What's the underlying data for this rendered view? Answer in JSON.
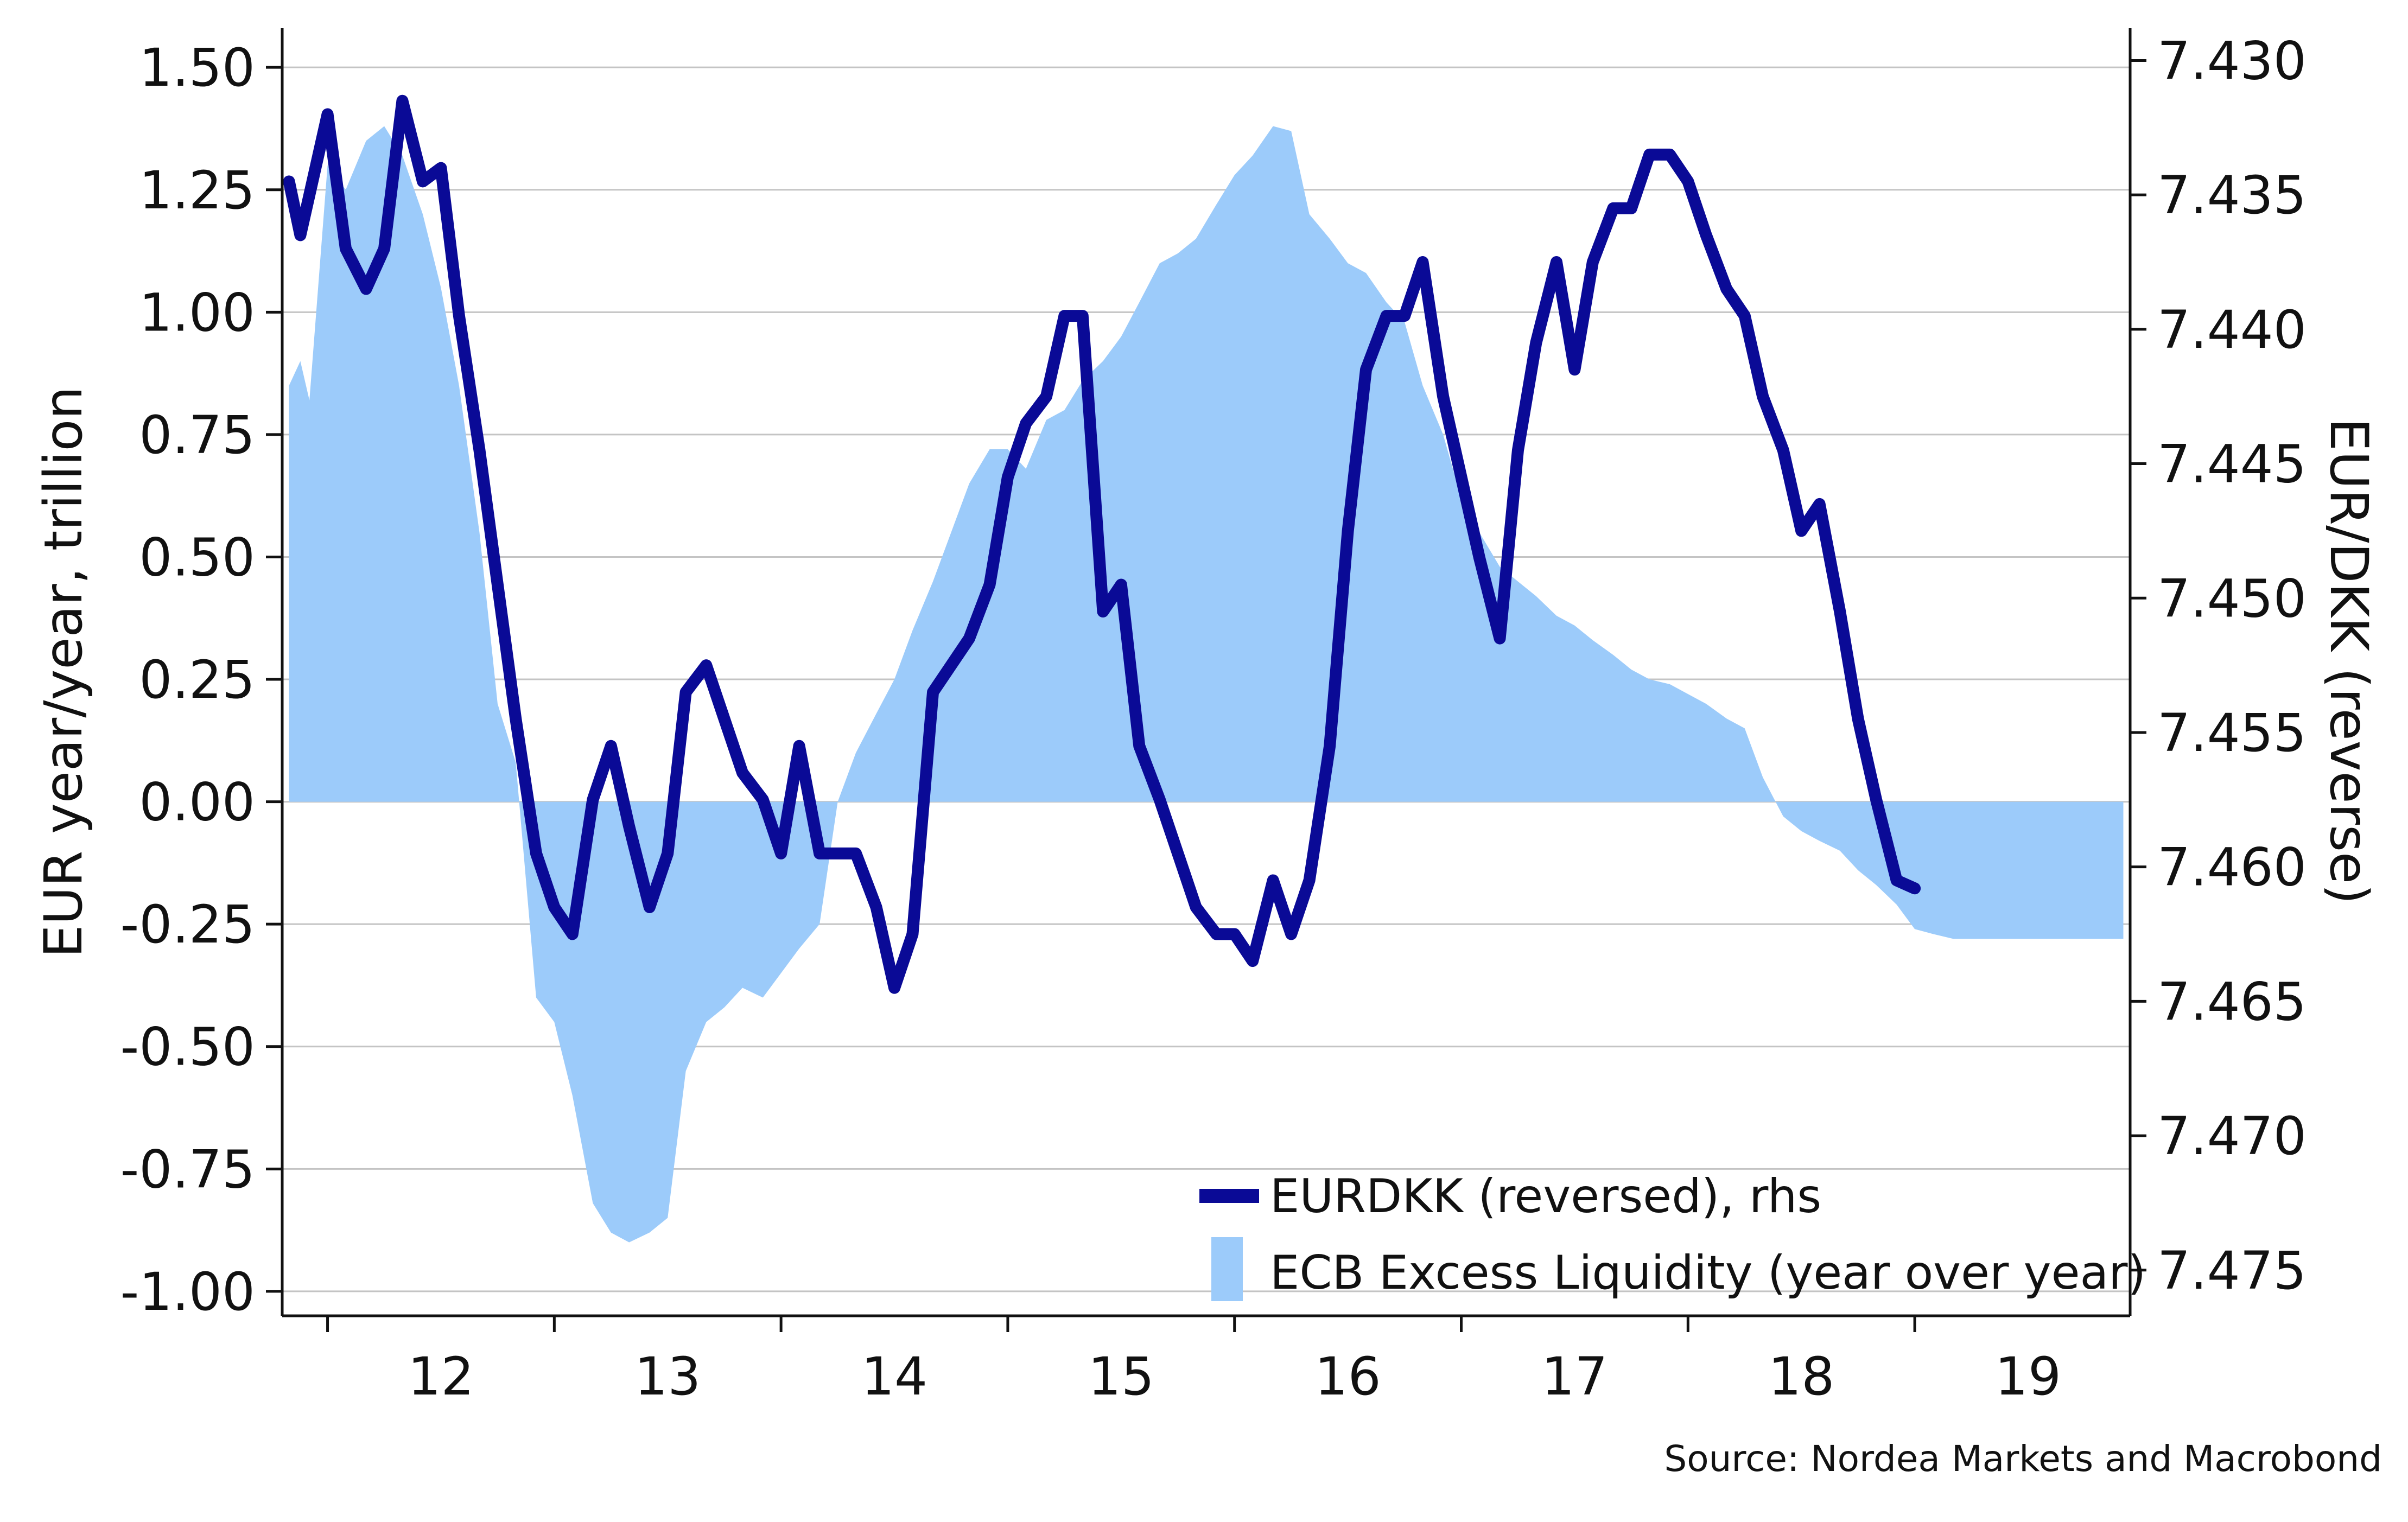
{
  "chart_data": {
    "type": "line",
    "title": "",
    "source": "Source: Nordea Markets and Macrobond",
    "ylabel_left": "EUR year/year, trillion",
    "ylabel_right": "EUR/DKK (reverse)",
    "xlim": [
      2011.3,
      2019.45
    ],
    "x_tick_values": [
      2011.5,
      2012.5,
      2013.5,
      2014.5,
      2015.5,
      2016.5,
      2017.5,
      2018.5,
      2019.5
    ],
    "x_tick_labels": [
      "12",
      "13",
      "14",
      "15",
      "16",
      "17",
      "18",
      "19"
    ],
    "x_tick_label_positions": [
      2012,
      2013,
      2014,
      2015,
      2016,
      2017,
      2018,
      2019
    ],
    "ylim_left": [
      -1.05,
      1.58
    ],
    "ylim_right": [
      7.4767,
      7.4288
    ],
    "right_axis_reversed": true,
    "left_tick_labels": [
      "1.50",
      "1.25",
      "1.00",
      "0.75",
      "0.50",
      "0.25",
      "0.00",
      "-0.25",
      "-0.50",
      "-0.75",
      "-1.00"
    ],
    "left_tick_values": [
      1.5,
      1.25,
      1.0,
      0.75,
      0.5,
      0.25,
      0.0,
      -0.25,
      -0.5,
      -0.75,
      -1.0
    ],
    "right_tick_labels": [
      "7.430",
      "7.435",
      "7.440",
      "7.445",
      "7.450",
      "7.455",
      "7.460",
      "7.465",
      "7.470",
      "7.475"
    ],
    "right_tick_values": [
      7.43,
      7.435,
      7.44,
      7.445,
      7.45,
      7.455,
      7.46,
      7.465,
      7.47,
      7.475
    ],
    "grid": true,
    "legend_position": "bottom-right",
    "colors": {
      "eurdkk": "#0a0a96",
      "excess_liquidity": "#9ccbfa",
      "grid": "#c4c4c4",
      "axis": "#111111"
    },
    "series": [
      {
        "name": "ECB Excess Liquidity (year over year)",
        "axis": "left",
        "kind": "area",
        "x": [
          2011.33,
          2011.38,
          2011.42,
          2011.5,
          2011.58,
          2011.67,
          2011.75,
          2011.83,
          2011.92,
          2012.0,
          2012.08,
          2012.17,
          2012.25,
          2012.33,
          2012.42,
          2012.5,
          2012.58,
          2012.67,
          2012.75,
          2012.83,
          2012.92,
          2013.0,
          2013.08,
          2013.17,
          2013.25,
          2013.33,
          2013.42,
          2013.5,
          2013.58,
          2013.67,
          2013.75,
          2013.83,
          2013.92,
          2014.0,
          2014.08,
          2014.17,
          2014.25,
          2014.33,
          2014.42,
          2014.5,
          2014.58,
          2014.67,
          2014.75,
          2014.83,
          2014.92,
          2015.0,
          2015.08,
          2015.17,
          2015.25,
          2015.33,
          2015.42,
          2015.5,
          2015.58,
          2015.67,
          2015.75,
          2015.83,
          2015.92,
          2016.0,
          2016.08,
          2016.17,
          2016.25,
          2016.33,
          2016.42,
          2016.5,
          2016.58,
          2016.67,
          2016.75,
          2016.83,
          2016.92,
          2017.0,
          2017.08,
          2017.17,
          2017.25,
          2017.33,
          2017.42,
          2017.5,
          2017.58,
          2017.67,
          2017.75,
          2017.83,
          2017.92,
          2018.0,
          2018.08,
          2018.17,
          2018.25,
          2018.33,
          2018.42,
          2018.5,
          2018.58,
          2018.67,
          2018.75,
          2018.83,
          2018.92,
          2019.0,
          2019.08,
          2019.17,
          2019.25,
          2019.33,
          2019.42
        ],
        "y": [
          0.85,
          0.9,
          0.82,
          1.3,
          1.25,
          1.35,
          1.38,
          1.32,
          1.2,
          1.05,
          0.85,
          0.55,
          0.2,
          0.08,
          -0.4,
          -0.45,
          -0.6,
          -0.82,
          -0.88,
          -0.9,
          -0.88,
          -0.85,
          -0.55,
          -0.45,
          -0.42,
          -0.38,
          -0.4,
          -0.35,
          -0.3,
          -0.25,
          0.0,
          0.1,
          0.18,
          0.25,
          0.35,
          0.45,
          0.55,
          0.65,
          0.72,
          0.72,
          0.68,
          0.78,
          0.8,
          0.86,
          0.9,
          0.95,
          1.02,
          1.1,
          1.12,
          1.15,
          1.22,
          1.28,
          1.32,
          1.38,
          1.37,
          1.2,
          1.15,
          1.1,
          1.08,
          1.02,
          0.98,
          0.85,
          0.75,
          0.62,
          0.55,
          0.48,
          0.45,
          0.42,
          0.38,
          0.36,
          0.33,
          0.3,
          0.27,
          0.25,
          0.24,
          0.22,
          0.2,
          0.17,
          0.15,
          0.05,
          -0.03,
          -0.06,
          -0.08,
          -0.1,
          -0.14,
          -0.17,
          -0.21,
          -0.26,
          -0.27,
          -0.28,
          -0.28,
          -0.28,
          -0.28,
          -0.28,
          -0.28,
          -0.28,
          -0.28,
          -0.28,
          -0.28
        ]
      },
      {
        "name": "EURDKK (reversed), rhs",
        "axis": "right",
        "kind": "line",
        "x": [
          2011.33,
          2011.38,
          2011.42,
          2011.5,
          2011.58,
          2011.67,
          2011.75,
          2011.83,
          2011.92,
          2012.0,
          2012.08,
          2012.17,
          2012.25,
          2012.33,
          2012.42,
          2012.5,
          2012.58,
          2012.67,
          2012.75,
          2012.83,
          2012.92,
          2013.0,
          2013.08,
          2013.17,
          2013.25,
          2013.33,
          2013.42,
          2013.5,
          2013.58,
          2013.67,
          2013.75,
          2013.83,
          2013.92,
          2014.0,
          2014.08,
          2014.17,
          2014.25,
          2014.33,
          2014.42,
          2014.5,
          2014.58,
          2014.67,
          2014.75,
          2014.83,
          2014.92,
          2015.0,
          2015.08,
          2015.17,
          2015.25,
          2015.33,
          2015.42,
          2015.5,
          2015.58,
          2015.67,
          2015.75,
          2015.83,
          2015.92,
          2016.0,
          2016.08,
          2016.17,
          2016.25,
          2016.33,
          2016.42,
          2016.5,
          2016.58,
          2016.67,
          2016.75,
          2016.83,
          2016.92,
          2017.0,
          2017.08,
          2017.17,
          2017.25,
          2017.33,
          2017.42,
          2017.5,
          2017.58,
          2017.67,
          2017.75,
          2017.83,
          2017.92,
          2018.0,
          2018.08,
          2018.17,
          2018.25,
          2018.33,
          2018.42,
          2018.5
        ],
        "y": [
          7.4345,
          7.4365,
          7.435,
          7.432,
          7.437,
          7.4385,
          7.437,
          7.4315,
          7.4345,
          7.434,
          7.4395,
          7.4445,
          7.4495,
          7.4545,
          7.4595,
          7.4615,
          7.4625,
          7.4575,
          7.4555,
          7.4585,
          7.4615,
          7.4595,
          7.4535,
          7.4525,
          7.4545,
          7.4565,
          7.4575,
          7.4595,
          7.4555,
          7.4595,
          7.4595,
          7.4595,
          7.4615,
          7.4645,
          7.4625,
          7.4535,
          7.4525,
          7.4515,
          7.4495,
          7.4455,
          7.4435,
          7.4425,
          7.4395,
          7.4395,
          7.4505,
          7.4495,
          7.4555,
          7.4575,
          7.4595,
          7.4615,
          7.4625,
          7.4625,
          7.4635,
          7.4605,
          7.4625,
          7.4605,
          7.4555,
          7.4475,
          7.4415,
          7.4395,
          7.4395,
          7.4375,
          7.4425,
          7.4455,
          7.4485,
          7.4515,
          7.4445,
          7.4405,
          7.4375,
          7.4415,
          7.4375,
          7.4355,
          7.4355,
          7.4335,
          7.4335,
          7.4345,
          7.4365,
          7.4385,
          7.4395,
          7.4425,
          7.4445,
          7.4475,
          7.4465,
          7.4505,
          7.4545,
          7.4575,
          7.4605,
          7.4608
        ]
      }
    ]
  }
}
